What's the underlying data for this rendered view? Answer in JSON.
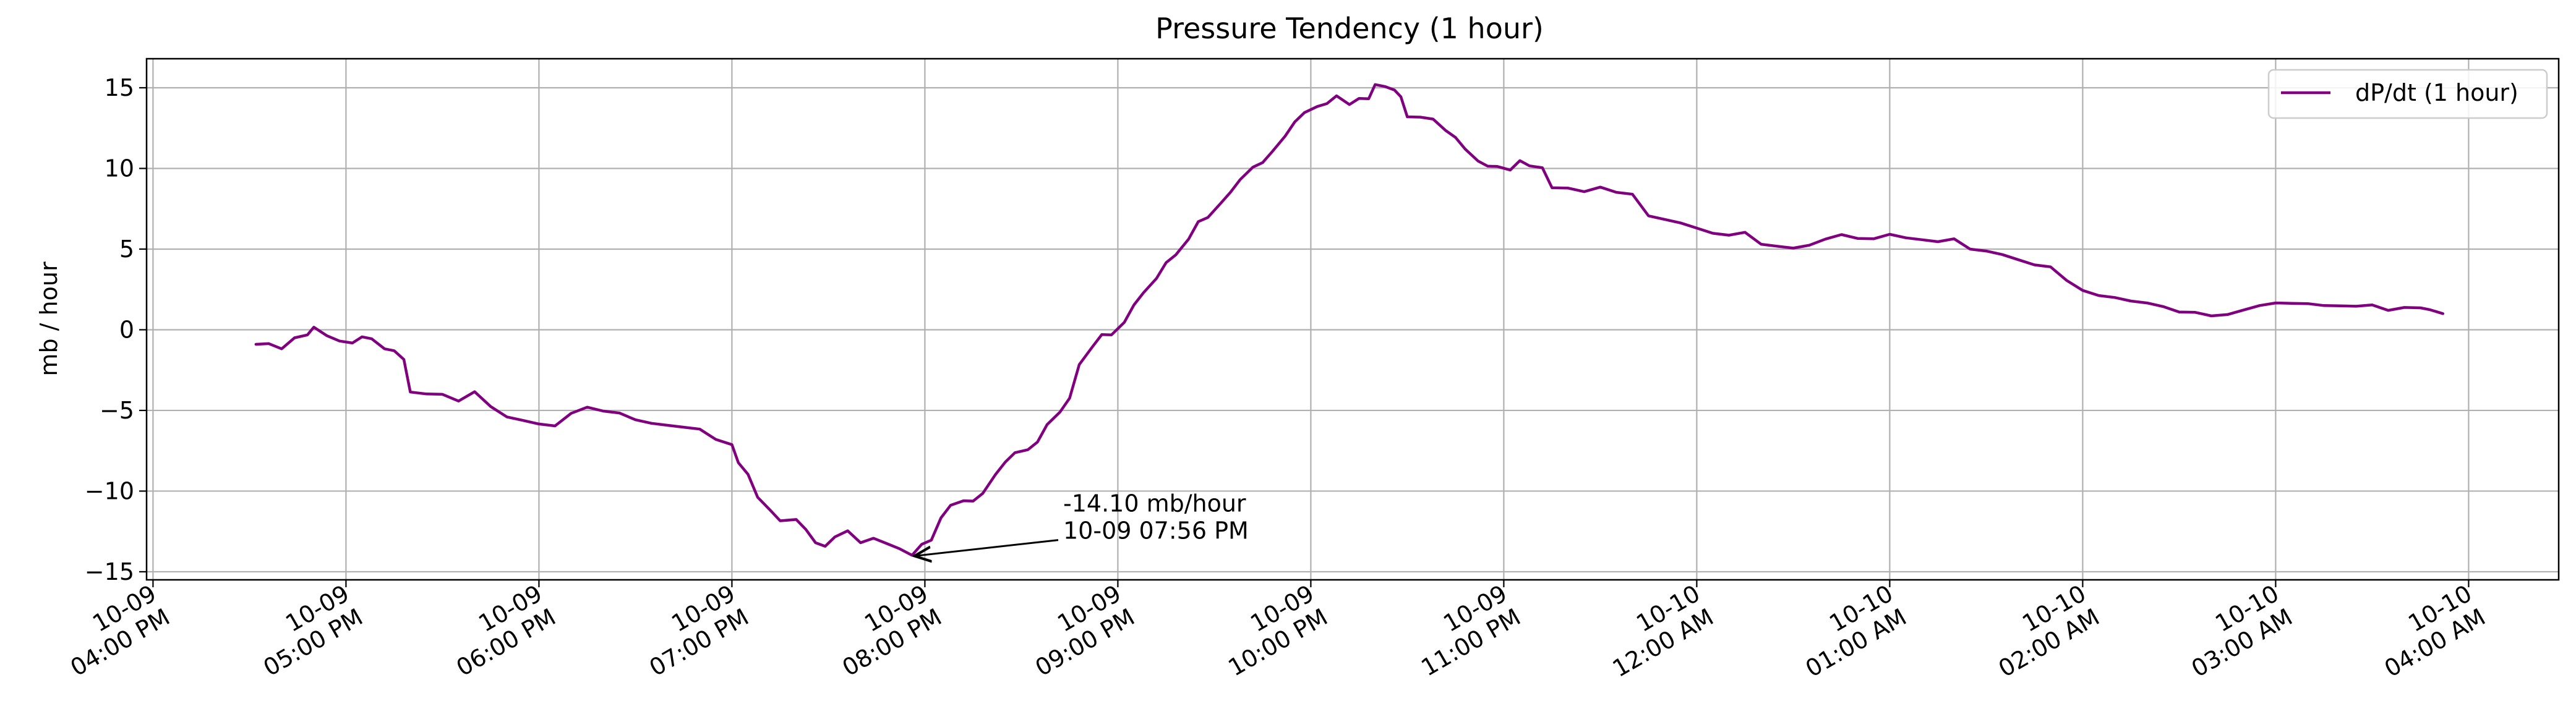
{
  "chart_data": {
    "type": "line",
    "title": "Pressure Tendency (1 hour)",
    "xlabel": "",
    "ylabel": "mb / hour",
    "ylim": [
      -15.5,
      16.8
    ],
    "xlim": [
      "2024-10-09 15:58",
      "2024-10-10 04:28"
    ],
    "grid": true,
    "legend_position": "top-right",
    "y_ticks": [
      -15,
      -10,
      -5,
      0,
      5,
      10,
      15
    ],
    "y_tick_labels": [
      "−15",
      "−10",
      "−5",
      "0",
      "5",
      "10",
      "15"
    ],
    "x_ticks": [
      {
        "time": "2024-10-09 16:00",
        "line1": "10-09",
        "line2": "04:00 PM"
      },
      {
        "time": "2024-10-09 17:00",
        "line1": "10-09",
        "line2": "05:00 PM"
      },
      {
        "time": "2024-10-09 18:00",
        "line1": "10-09",
        "line2": "06:00 PM"
      },
      {
        "time": "2024-10-09 19:00",
        "line1": "10-09",
        "line2": "07:00 PM"
      },
      {
        "time": "2024-10-09 20:00",
        "line1": "10-09",
        "line2": "08:00 PM"
      },
      {
        "time": "2024-10-09 21:00",
        "line1": "10-09",
        "line2": "09:00 PM"
      },
      {
        "time": "2024-10-09 22:00",
        "line1": "10-09",
        "line2": "10:00 PM"
      },
      {
        "time": "2024-10-09 23:00",
        "line1": "10-09",
        "line2": "11:00 PM"
      },
      {
        "time": "2024-10-10 00:00",
        "line1": "10-10",
        "line2": "12:00 AM"
      },
      {
        "time": "2024-10-10 01:00",
        "line1": "10-10",
        "line2": "01:00 AM"
      },
      {
        "time": "2024-10-10 02:00",
        "line1": "10-10",
        "line2": "02:00 AM"
      },
      {
        "time": "2024-10-10 03:00",
        "line1": "10-10",
        "line2": "03:00 AM"
      },
      {
        "time": "2024-10-10 04:00",
        "line1": "10-10",
        "line2": "04:00 AM"
      }
    ],
    "series": [
      {
        "name": "dP/dt (1 hour)",
        "color": "#800080",
        "points": [
          [
            "2024-10-09 16:32",
            -0.9
          ],
          [
            "2024-10-09 16:36",
            -0.7
          ],
          [
            "2024-10-09 16:40",
            -1.1
          ],
          [
            "2024-10-09 16:44",
            -0.5
          ],
          [
            "2024-10-09 16:48",
            -0.4
          ],
          [
            "2024-10-09 16:50",
            0.0
          ],
          [
            "2024-10-09 16:54",
            -0.6
          ],
          [
            "2024-10-09 16:58",
            -0.5
          ],
          [
            "2024-10-09 17:02",
            -0.7
          ],
          [
            "2024-10-09 17:05",
            -0.4
          ],
          [
            "2024-10-09 17:08",
            -0.6
          ],
          [
            "2024-10-09 17:12",
            -1.3
          ],
          [
            "2024-10-09 17:15",
            -1.5
          ],
          [
            "2024-10-09 17:18",
            -1.6
          ],
          [
            "2024-10-09 17:20",
            -3.7
          ],
          [
            "2024-10-09 17:25",
            -3.9
          ],
          [
            "2024-10-09 17:30",
            -4.0
          ],
          [
            "2024-10-09 17:35",
            -4.5
          ],
          [
            "2024-10-09 17:40",
            -4.0
          ],
          [
            "2024-10-09 17:45",
            -5.0
          ],
          [
            "2024-10-09 17:50",
            -5.2
          ],
          [
            "2024-10-09 17:55",
            -5.5
          ],
          [
            "2024-10-09 18:00",
            -5.8
          ],
          [
            "2024-10-09 18:05",
            -6.0
          ],
          [
            "2024-10-09 18:10",
            -5.3
          ],
          [
            "2024-10-09 18:15",
            -5.0
          ],
          [
            "2024-10-09 18:20",
            -4.8
          ],
          [
            "2024-10-09 18:25",
            -5.0
          ],
          [
            "2024-10-09 18:30",
            -5.5
          ],
          [
            "2024-10-09 18:35",
            -5.8
          ],
          [
            "2024-10-09 18:40",
            -6.0
          ],
          [
            "2024-10-09 18:45",
            -6.2
          ],
          [
            "2024-10-09 18:50",
            -6.4
          ],
          [
            "2024-10-09 18:55",
            -6.6
          ],
          [
            "2024-10-09 19:00",
            -7.0
          ],
          [
            "2024-10-09 19:02",
            -8.2
          ],
          [
            "2024-10-09 19:05",
            -9.0
          ],
          [
            "2024-10-09 19:08",
            -10.5
          ],
          [
            "2024-10-09 19:12",
            -11.4
          ],
          [
            "2024-10-09 19:15",
            -11.6
          ],
          [
            "2024-10-09 19:20",
            -11.6
          ],
          [
            "2024-10-09 19:23",
            -12.3
          ],
          [
            "2024-10-09 19:26",
            -13.2
          ],
          [
            "2024-10-09 19:29",
            -13.5
          ],
          [
            "2024-10-09 19:32",
            -13.0
          ],
          [
            "2024-10-09 19:36",
            -12.7
          ],
          [
            "2024-10-09 19:40",
            -13.0
          ],
          [
            "2024-10-09 19:44",
            -12.8
          ],
          [
            "2024-10-09 19:48",
            -13.2
          ],
          [
            "2024-10-09 19:52",
            -13.6
          ],
          [
            "2024-10-09 19:56",
            -14.1
          ],
          [
            "2024-10-09 19:59",
            -13.5
          ],
          [
            "2024-10-09 20:02",
            -12.8
          ],
          [
            "2024-10-09 20:05",
            -11.5
          ],
          [
            "2024-10-09 20:08",
            -10.8
          ],
          [
            "2024-10-09 20:12",
            -10.6
          ],
          [
            "2024-10-09 20:15",
            -10.7
          ],
          [
            "2024-10-09 20:18",
            -10.3
          ],
          [
            "2024-10-09 20:22",
            -9.2
          ],
          [
            "2024-10-09 20:25",
            -8.0
          ],
          [
            "2024-10-09 20:28",
            -7.5
          ],
          [
            "2024-10-09 20:32",
            -7.4
          ],
          [
            "2024-10-09 20:35",
            -7.0
          ],
          [
            "2024-10-09 20:38",
            -6.0
          ],
          [
            "2024-10-09 20:42",
            -5.3
          ],
          [
            "2024-10-09 20:45",
            -4.0
          ],
          [
            "2024-10-09 20:48",
            -2.0
          ],
          [
            "2024-10-09 20:52",
            -1.0
          ],
          [
            "2024-10-09 20:55",
            -0.3
          ],
          [
            "2024-10-09 20:58",
            -0.4
          ],
          [
            "2024-10-09 21:02",
            0.3
          ],
          [
            "2024-10-09 21:05",
            1.3
          ],
          [
            "2024-10-09 21:08",
            2.5
          ],
          [
            "2024-10-09 21:12",
            3.3
          ],
          [
            "2024-10-09 21:15",
            4.2
          ],
          [
            "2024-10-09 21:18",
            4.6
          ],
          [
            "2024-10-09 21:22",
            5.5
          ],
          [
            "2024-10-09 21:25",
            6.5
          ],
          [
            "2024-10-09 21:28",
            7.2
          ],
          [
            "2024-10-09 21:32",
            8.0
          ],
          [
            "2024-10-09 21:35",
            8.6
          ],
          [
            "2024-10-09 21:38",
            9.3
          ],
          [
            "2024-10-09 21:42",
            10.0
          ],
          [
            "2024-10-09 21:45",
            10.2
          ],
          [
            "2024-10-09 21:48",
            10.8
          ],
          [
            "2024-10-09 21:52",
            12.2
          ],
          [
            "2024-10-09 21:55",
            13.0
          ],
          [
            "2024-10-09 21:58",
            13.5
          ],
          [
            "2024-10-09 22:02",
            13.8
          ],
          [
            "2024-10-09 22:05",
            13.9
          ],
          [
            "2024-10-09 22:08",
            14.3
          ],
          [
            "2024-10-09 22:12",
            14.2
          ],
          [
            "2024-10-09 22:15",
            14.5
          ],
          [
            "2024-10-09 22:18",
            14.4
          ],
          [
            "2024-10-09 22:20",
            15.2
          ],
          [
            "2024-10-09 22:23",
            15.0
          ],
          [
            "2024-10-09 22:26",
            14.7
          ],
          [
            "2024-10-09 22:28",
            14.2
          ],
          [
            "2024-10-09 22:30",
            13.4
          ],
          [
            "2024-10-09 22:34",
            13.3
          ],
          [
            "2024-10-09 22:38",
            13.1
          ],
          [
            "2024-10-09 22:42",
            12.3
          ],
          [
            "2024-10-09 22:45",
            11.8
          ],
          [
            "2024-10-09 22:48",
            11.0
          ],
          [
            "2024-10-09 22:52",
            10.7
          ],
          [
            "2024-10-09 22:55",
            10.3
          ],
          [
            "2024-10-09 22:58",
            10.2
          ],
          [
            "2024-10-09 23:02",
            9.9
          ],
          [
            "2024-10-09 23:05",
            10.4
          ],
          [
            "2024-10-09 23:08",
            10.0
          ],
          [
            "2024-10-09 23:12",
            9.8
          ],
          [
            "2024-10-09 23:15",
            9.0
          ],
          [
            "2024-10-09 23:20",
            8.9
          ],
          [
            "2024-10-09 23:25",
            8.6
          ],
          [
            "2024-10-09 23:30",
            8.8
          ],
          [
            "2024-10-09 23:35",
            8.4
          ],
          [
            "2024-10-09 23:40",
            8.2
          ],
          [
            "2024-10-09 23:45",
            7.3
          ],
          [
            "2024-10-09 23:50",
            7.0
          ],
          [
            "2024-10-09 23:55",
            6.7
          ],
          [
            "2024-10-10 00:00",
            6.3
          ],
          [
            "2024-10-10 00:05",
            5.9
          ],
          [
            "2024-10-10 00:10",
            5.7
          ],
          [
            "2024-10-10 00:15",
            5.8
          ],
          [
            "2024-10-10 00:20",
            5.5
          ],
          [
            "2024-10-10 00:25",
            5.3
          ],
          [
            "2024-10-10 00:30",
            5.1
          ],
          [
            "2024-10-10 00:35",
            5.2
          ],
          [
            "2024-10-10 00:40",
            5.5
          ],
          [
            "2024-10-10 00:45",
            5.7
          ],
          [
            "2024-10-10 00:50",
            5.9
          ],
          [
            "2024-10-10 00:55",
            5.8
          ],
          [
            "2024-10-10 01:00",
            6.0
          ],
          [
            "2024-10-10 01:05",
            5.7
          ],
          [
            "2024-10-10 01:10",
            5.5
          ],
          [
            "2024-10-10 01:15",
            5.3
          ],
          [
            "2024-10-10 01:20",
            5.4
          ],
          [
            "2024-10-10 01:25",
            5.2
          ],
          [
            "2024-10-10 01:30",
            5.0
          ],
          [
            "2024-10-10 01:35",
            4.7
          ],
          [
            "2024-10-10 01:40",
            4.3
          ],
          [
            "2024-10-10 01:45",
            3.9
          ],
          [
            "2024-10-10 01:50",
            3.7
          ],
          [
            "2024-10-10 01:55",
            3.3
          ],
          [
            "2024-10-10 02:00",
            2.6
          ],
          [
            "2024-10-10 02:05",
            2.2
          ],
          [
            "2024-10-10 02:10",
            2.0
          ],
          [
            "2024-10-10 02:15",
            1.7
          ],
          [
            "2024-10-10 02:20",
            1.5
          ],
          [
            "2024-10-10 02:25",
            1.2
          ],
          [
            "2024-10-10 02:30",
            1.3
          ],
          [
            "2024-10-10 02:35",
            1.2
          ],
          [
            "2024-10-10 02:40",
            0.9
          ],
          [
            "2024-10-10 02:45",
            0.9
          ],
          [
            "2024-10-10 02:50",
            1.1
          ],
          [
            "2024-10-10 02:55",
            1.3
          ],
          [
            "2024-10-10 03:00",
            1.9
          ],
          [
            "2024-10-10 03:05",
            1.8
          ],
          [
            "2024-10-10 03:10",
            1.7
          ],
          [
            "2024-10-10 03:15",
            1.5
          ],
          [
            "2024-10-10 03:20",
            1.4
          ],
          [
            "2024-10-10 03:25",
            1.3
          ],
          [
            "2024-10-10 03:30",
            1.3
          ],
          [
            "2024-10-10 03:35",
            1.4
          ],
          [
            "2024-10-10 03:40",
            1.5
          ],
          [
            "2024-10-10 03:45",
            1.4
          ],
          [
            "2024-10-10 03:48",
            1.2
          ],
          [
            "2024-10-10 03:52",
            1.0
          ]
        ]
      }
    ],
    "annotation": {
      "line1": "-14.10 mb/hour",
      "line2": "10-09 07:56 PM",
      "target_time": "2024-10-09 19:56",
      "target_value": -14.1,
      "text_time": "2024-10-09 20:43",
      "text_value": -11.5
    }
  }
}
